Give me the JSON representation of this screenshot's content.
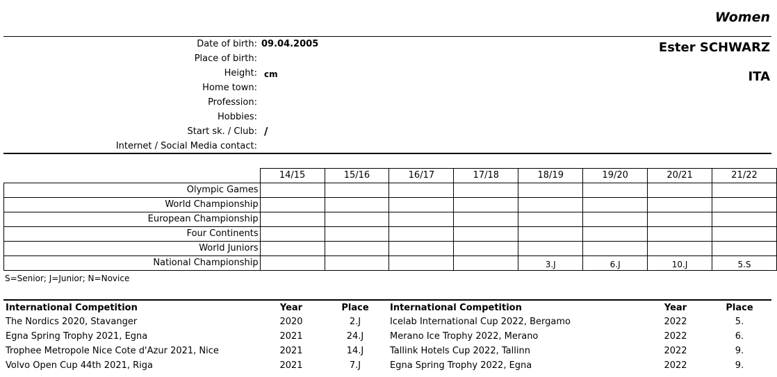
{
  "category": "Women",
  "athlete": {
    "name": "Ester SCHWARZ",
    "country": "ITA"
  },
  "bio": [
    {
      "label": "Date of birth:",
      "value": "09.04.2005"
    },
    {
      "label": "Place of birth:",
      "value": ""
    },
    {
      "label": "Height:",
      "value": "cm"
    },
    {
      "label": "Home town:",
      "value": ""
    },
    {
      "label": "Profession:",
      "value": ""
    },
    {
      "label": "Hobbies:",
      "value": ""
    },
    {
      "label": "Start sk. / Club:",
      "value": "/"
    },
    {
      "label": "Internet / Social Media contact:",
      "value": ""
    }
  ],
  "results_table": {
    "seasons": [
      "14/15",
      "15/16",
      "16/17",
      "17/18",
      "18/19",
      "19/20",
      "20/21",
      "21/22"
    ],
    "rows": [
      {
        "event": "Olympic Games",
        "values": [
          "",
          "",
          "",
          "",
          "",
          "",
          "",
          ""
        ]
      },
      {
        "event": "World Championship",
        "values": [
          "",
          "",
          "",
          "",
          "",
          "",
          "",
          ""
        ]
      },
      {
        "event": "European Championship",
        "values": [
          "",
          "",
          "",
          "",
          "",
          "",
          "",
          ""
        ]
      },
      {
        "event": "Four Continents",
        "values": [
          "",
          "",
          "",
          "",
          "",
          "",
          "",
          ""
        ]
      },
      {
        "event": "World Juniors",
        "values": [
          "",
          "",
          "",
          "",
          "",
          "",
          "",
          ""
        ]
      },
      {
        "event": "National Championship",
        "values": [
          "",
          "",
          "",
          "",
          "3.J",
          "6.J",
          "10.J",
          "5.S"
        ]
      }
    ]
  },
  "legend": "S=Senior; J=Junior; N=Novice",
  "competitions": {
    "left": {
      "headers": {
        "competition": "International Competition",
        "year": "Year",
        "place": "Place"
      },
      "rows": [
        {
          "competition": "The Nordics 2020, Stavanger",
          "year": "2020",
          "place": "2.J"
        },
        {
          "competition": "Egna Spring Trophy 2021, Egna",
          "year": "2021",
          "place": "24.J"
        },
        {
          "competition": "Trophee Metropole Nice Cote d'Azur 2021, Nice",
          "year": "2021",
          "place": "14.J"
        },
        {
          "competition": "Volvo Open Cup 44th 2021, Riga",
          "year": "2021",
          "place": "7.J"
        }
      ]
    },
    "right": {
      "headers": {
        "competition": "International Competition",
        "year": "Year",
        "place": "Place"
      },
      "rows": [
        {
          "competition": "Icelab International Cup 2022, Bergamo",
          "year": "2022",
          "place": "5."
        },
        {
          "competition": "Merano Ice Trophy 2022, Merano",
          "year": "2022",
          "place": "6."
        },
        {
          "competition": "Tallink Hotels Cup 2022, Tallinn",
          "year": "2022",
          "place": "9."
        },
        {
          "competition": "Egna Spring Trophy 2022, Egna",
          "year": "2022",
          "place": "9."
        }
      ]
    }
  }
}
